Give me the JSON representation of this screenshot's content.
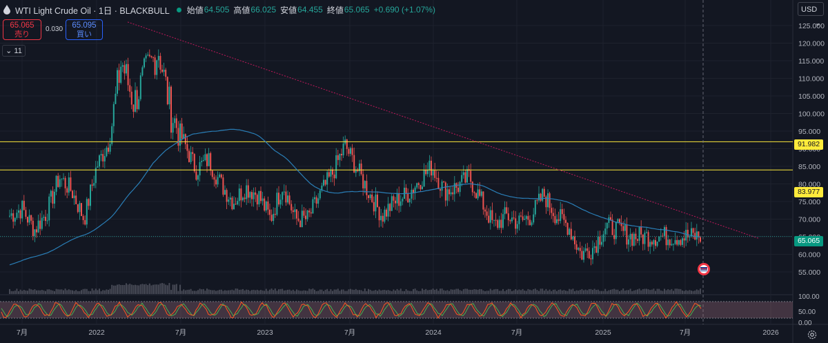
{
  "header": {
    "symbol": "WTI Light Crude Oil · 1日 · BLACKBULL",
    "open_label": "始値",
    "open": "64.505",
    "high_label": "高値",
    "high": "66.025",
    "low_label": "安値",
    "low": "64.455",
    "close_label": "終値",
    "close": "65.065",
    "change": "+0.690 (+1.07%)"
  },
  "trade": {
    "sell_price": "65.065",
    "sell_label": "売り",
    "buy_price": "65.095",
    "buy_label": "買い",
    "spread": "0.030"
  },
  "indicators_count": "11",
  "currency": "USD",
  "colors": {
    "background": "#131722",
    "up": "#26a69a",
    "down": "#ef5350",
    "ma": "#2962ff",
    "hline": "#ffeb3b",
    "trend": "#c2185b",
    "osc_k": "#ff5722",
    "osc_d": "#4caf50"
  },
  "chart_data": {
    "type": "candlestick",
    "y_ticks": [
      "125.000",
      "120.000",
      "115.000",
      "110.000",
      "105.000",
      "100.000",
      "95.000",
      "90.000",
      "85.000",
      "80.000",
      "75.000",
      "70.000",
      "65.000",
      "60.000",
      "55.000"
    ],
    "x_ticks": [
      "7月",
      "2022",
      "7月",
      "2023",
      "7月",
      "2024",
      "7月",
      "2025",
      "7月",
      "2026"
    ],
    "osc_ticks": [
      "100.00",
      "50.00",
      "0.00"
    ],
    "ylim": [
      53,
      127
    ],
    "price_labels": {
      "h1": "91.982",
      "h2": "83.977",
      "last": "65.065"
    },
    "horizontal_lines": [
      91.982,
      83.977
    ],
    "trendline": [
      [
        "2022-03",
        126
      ],
      [
        "2025-10",
        64.5
      ]
    ],
    "moving_average": "approx. 200-day",
    "close_path": [
      [
        "2021-06",
        71
      ],
      [
        "2021-07",
        73
      ],
      [
        "2021-08",
        67
      ],
      [
        "2021-09",
        72
      ],
      [
        "2021-10",
        82
      ],
      [
        "2021-11",
        78
      ],
      [
        "2021-12",
        70
      ],
      [
        "2022-01",
        85
      ],
      [
        "2022-02",
        92
      ],
      [
        "2022-03",
        115
      ],
      [
        "2022-04",
        103
      ],
      [
        "2022-05",
        112
      ],
      [
        "2022-06",
        118
      ],
      [
        "2022-07",
        100
      ],
      [
        "2022-08",
        92
      ],
      [
        "2022-09",
        84
      ],
      [
        "2022-10",
        87
      ],
      [
        "2022-11",
        80
      ],
      [
        "2022-12",
        75
      ],
      [
        "2023-01",
        79
      ],
      [
        "2023-02",
        77
      ],
      [
        "2023-03",
        70
      ],
      [
        "2023-04",
        80
      ],
      [
        "2023-05",
        70
      ],
      [
        "2023-06",
        70
      ],
      [
        "2023-07",
        77
      ],
      [
        "2023-08",
        83
      ],
      [
        "2023-09",
        91
      ],
      [
        "2023-10",
        84
      ],
      [
        "2023-11",
        77
      ],
      [
        "2023-12",
        71
      ],
      [
        "2024-01",
        75
      ],
      [
        "2024-02",
        77
      ],
      [
        "2024-03",
        81
      ],
      [
        "2024-04",
        85
      ],
      [
        "2024-05",
        78
      ],
      [
        "2024-06",
        79
      ],
      [
        "2024-07",
        82
      ],
      [
        "2024-08",
        75
      ],
      [
        "2024-09",
        68
      ],
      [
        "2024-10",
        71
      ],
      [
        "2024-11",
        69
      ],
      [
        "2024-12",
        71
      ],
      [
        "2025-01",
        77
      ],
      [
        "2025-02",
        71
      ],
      [
        "2025-03",
        68
      ],
      [
        "2025-04",
        60
      ],
      [
        "2025-05",
        62
      ],
      [
        "2025-06",
        68
      ],
      [
        "2025-07",
        67
      ],
      [
        "2025-08",
        65.065
      ]
    ]
  }
}
